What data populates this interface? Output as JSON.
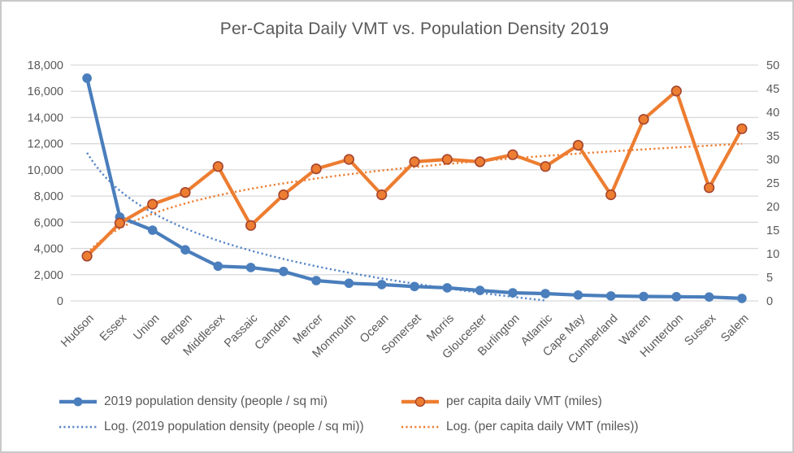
{
  "chart_data": {
    "type": "line",
    "title": "Per-Capita Daily VMT vs. Population Density 2019",
    "legend_position": "bottom",
    "grid": "horizontal",
    "categories": [
      "Hudson",
      "Essex",
      "Union",
      "Bergen",
      "Middlesex",
      "Passaic",
      "Camden",
      "Mercer",
      "Monmouth",
      "Ocean",
      "Somerset",
      "Morris",
      "Gloucester",
      "Burlington",
      "Atlantic",
      "Cape May",
      "Cumberland",
      "Warren",
      "Hunterdon",
      "Sussex",
      "Salem"
    ],
    "left_axis": {
      "min": 0,
      "max": 18000,
      "step": 2000,
      "ticks": [
        "0",
        "2,000",
        "4,000",
        "6,000",
        "8,000",
        "10,000",
        "12,000",
        "14,000",
        "16,000",
        "18,000"
      ]
    },
    "right_axis": {
      "min": 0,
      "max": 50,
      "step": 5,
      "ticks": [
        "0",
        "5",
        "10",
        "15",
        "20",
        "25",
        "30",
        "35",
        "40",
        "45",
        "50"
      ]
    },
    "series": [
      {
        "name": "2019 population density (people / sq mi)",
        "axis": "left",
        "style": "solid-marker",
        "color": "#4a7ebc",
        "values": [
          17000,
          6400,
          5400,
          3900,
          2650,
          2550,
          2250,
          1550,
          1350,
          1250,
          1100,
          1000,
          800,
          620,
          560,
          450,
          380,
          340,
          320,
          300,
          190
        ]
      },
      {
        "name": "per capita daily VMT (miles)",
        "axis": "right",
        "style": "solid-marker",
        "color": "#ed7d31",
        "marker_ring": "#a5452f",
        "values": [
          9.5,
          16.5,
          20.5,
          23,
          28.5,
          16,
          22.5,
          28,
          30,
          22.5,
          29.5,
          30,
          29.5,
          31,
          28.5,
          33,
          22.5,
          38.5,
          44.5,
          24,
          36.5
        ]
      },
      {
        "name": "Log. (2019 population density (people / sq mi))",
        "axis": "left",
        "style": "dotted-trend",
        "color": "#5585c6",
        "trend": {
          "type": "log",
          "a": -4162,
          "b": 11300,
          "clip_min": 0
        }
      },
      {
        "name": "Log. (per capita daily VMT (miles))",
        "axis": "right",
        "style": "dotted-trend",
        "color": "#ed7d31",
        "trend": {
          "type": "log",
          "a": 7.62,
          "b": 10.1
        }
      }
    ],
    "colors": {
      "grid": "#d9d9d9",
      "text": "#595959",
      "frame_border": "#c9c9c9"
    }
  }
}
